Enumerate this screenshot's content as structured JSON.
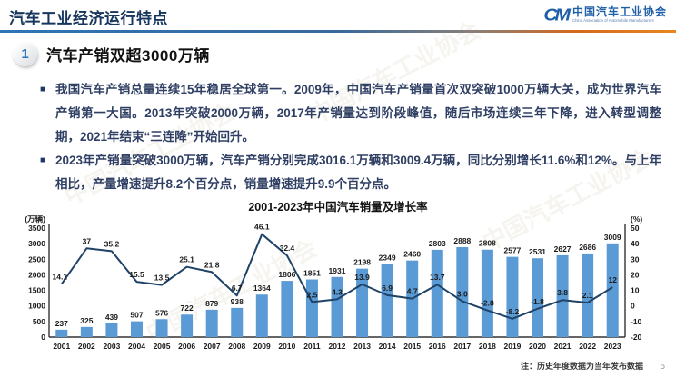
{
  "header": {
    "title": "汽车工业经济运行特点",
    "logo": {
      "mark": "CM",
      "org_cn": "中国汽车工业协会",
      "org_en": "China Association of Automobile Manufacturers"
    }
  },
  "watermark": "中国汽车工业协会",
  "section": {
    "number": "1",
    "heading": "汽车产销双超3000万辆",
    "bullet_marker": "■"
  },
  "bullets": [
    "我国汽车产销总量连续15年稳居全球第一。2009年，中国汽车产销量首次双突破1000万辆大关，成为世界汽车产销第一大国。2013年突破2000万辆，2017年产销量达到阶段峰值，随后市场连续三年下降，进入转型调整期，2021年结束“三连降”开始回升。",
    "2023年产销量突破3000万辆，汽车产销分别完成3016.1万辆和3009.4万辆，同比分别增长11.6%和12%。与上年相比，产量增速提升8.2个百分点，销量增速提升9.9个百分点。"
  ],
  "chart_data": {
    "type": "bar",
    "title": "2001-2023年中国汽车销量及增长率",
    "categories": [
      "2001",
      "2002",
      "2003",
      "2004",
      "2005",
      "2006",
      "2007",
      "2008",
      "2009",
      "2010",
      "2011",
      "2012",
      "2013",
      "2014",
      "2015",
      "2016",
      "2017",
      "2018",
      "2019",
      "2020",
      "2021",
      "2022",
      "2023"
    ],
    "series": [
      {
        "name": "销量",
        "type": "bar",
        "axis": "left",
        "color": "#5b9bd5",
        "values": [
          237,
          325,
          439,
          507,
          576,
          722,
          879,
          938,
          1364,
          1806,
          1851,
          1931,
          2198,
          2349,
          2460,
          2803,
          2888,
          2808,
          2577,
          2531,
          2627,
          2686,
          3009
        ]
      },
      {
        "name": "增长率",
        "type": "line",
        "axis": "right",
        "color": "#1f4267",
        "values": [
          14.1,
          37,
          35.2,
          15.5,
          13.5,
          25.1,
          21.8,
          6.7,
          46.1,
          32.4,
          2.5,
          4.3,
          13.9,
          6.9,
          4.7,
          13.7,
          3.0,
          -2.8,
          -8.2,
          -1.8,
          3.8,
          2.1,
          12
        ],
        "labels": [
          "14.1",
          "37",
          "35.2",
          "15.5",
          "13.5",
          "25.1",
          "21.8",
          "6.7",
          "46.1",
          "32.4",
          "2.5",
          "4.3",
          "13.9",
          "6.9",
          "4.7",
          "13.7",
          "3.0",
          "-2.8",
          "-8.2",
          "-1.8",
          "3.8",
          "2.1",
          "12"
        ]
      }
    ],
    "left_axis": {
      "label": "(万辆)",
      "min": 0,
      "max": 3500,
      "step": 500
    },
    "right_axis": {
      "label": "(%)",
      "min": -20,
      "max": 50,
      "step": 10
    },
    "grid": false,
    "legend_position": "none",
    "label_color": "#1a1a1a"
  },
  "footer": {
    "note": "注：历史年度数据为当年发布数据",
    "page": "5"
  },
  "colors": {
    "title": "#17365d",
    "body_text": "#2f3f63",
    "bar": "#5b9bd5",
    "line": "#1f4267",
    "accent_blue": "#2e74b5",
    "accent_orange": "#e8871e"
  }
}
